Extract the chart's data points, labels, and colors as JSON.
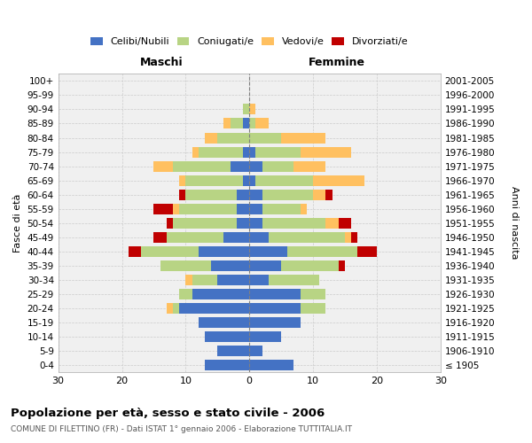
{
  "age_groups": [
    "100+",
    "95-99",
    "90-94",
    "85-89",
    "80-84",
    "75-79",
    "70-74",
    "65-69",
    "60-64",
    "55-59",
    "50-54",
    "45-49",
    "40-44",
    "35-39",
    "30-34",
    "25-29",
    "20-24",
    "15-19",
    "10-14",
    "5-9",
    "0-4"
  ],
  "birth_years": [
    "≤ 1905",
    "1906-1910",
    "1911-1915",
    "1916-1920",
    "1921-1925",
    "1926-1930",
    "1931-1935",
    "1936-1940",
    "1941-1945",
    "1946-1950",
    "1951-1955",
    "1956-1960",
    "1961-1965",
    "1966-1970",
    "1971-1975",
    "1976-1980",
    "1981-1985",
    "1986-1990",
    "1991-1995",
    "1996-2000",
    "2001-2005"
  ],
  "male": {
    "celibi": [
      0,
      0,
      0,
      1,
      0,
      1,
      3,
      1,
      2,
      2,
      2,
      4,
      8,
      6,
      5,
      9,
      11,
      8,
      7,
      5,
      7
    ],
    "coniugati": [
      0,
      0,
      1,
      2,
      5,
      7,
      9,
      9,
      8,
      9,
      10,
      9,
      9,
      8,
      4,
      2,
      1,
      0,
      0,
      0,
      0
    ],
    "vedovi": [
      0,
      0,
      0,
      1,
      2,
      1,
      3,
      1,
      0,
      1,
      0,
      0,
      0,
      0,
      1,
      0,
      1,
      0,
      0,
      0,
      0
    ],
    "divorziati": [
      0,
      0,
      0,
      0,
      0,
      0,
      0,
      0,
      1,
      3,
      1,
      2,
      2,
      0,
      0,
      0,
      0,
      0,
      0,
      0,
      0
    ]
  },
  "female": {
    "nubili": [
      0,
      0,
      0,
      0,
      0,
      1,
      2,
      1,
      2,
      2,
      2,
      3,
      6,
      5,
      3,
      8,
      8,
      8,
      5,
      2,
      7
    ],
    "coniugate": [
      0,
      0,
      0,
      1,
      5,
      7,
      5,
      9,
      8,
      6,
      10,
      12,
      11,
      9,
      8,
      4,
      4,
      0,
      0,
      0,
      0
    ],
    "vedove": [
      0,
      0,
      1,
      2,
      7,
      8,
      5,
      8,
      2,
      1,
      2,
      1,
      0,
      0,
      0,
      0,
      0,
      0,
      0,
      0,
      0
    ],
    "divorziate": [
      0,
      0,
      0,
      0,
      0,
      0,
      0,
      0,
      1,
      0,
      2,
      1,
      3,
      1,
      0,
      0,
      0,
      0,
      0,
      0,
      0
    ]
  },
  "colors": {
    "celibi": "#4472c4",
    "coniugati": "#b8d484",
    "vedovi": "#ffc060",
    "divorziati": "#c00000"
  },
  "xlim": 30,
  "title": "Popolazione per età, sesso e stato civile - 2006",
  "subtitle": "COMUNE DI FILETTINO (FR) - Dati ISTAT 1° gennaio 2006 - Elaborazione TUTTITALIA.IT",
  "ylabel_left": "Fasce di età",
  "ylabel_right": "Anni di nascita",
  "xlabel_male": "Maschi",
  "xlabel_female": "Femmine",
  "bg_color": "#ffffff",
  "plot_bg_color": "#f0f0f0",
  "grid_color": "#cccccc"
}
